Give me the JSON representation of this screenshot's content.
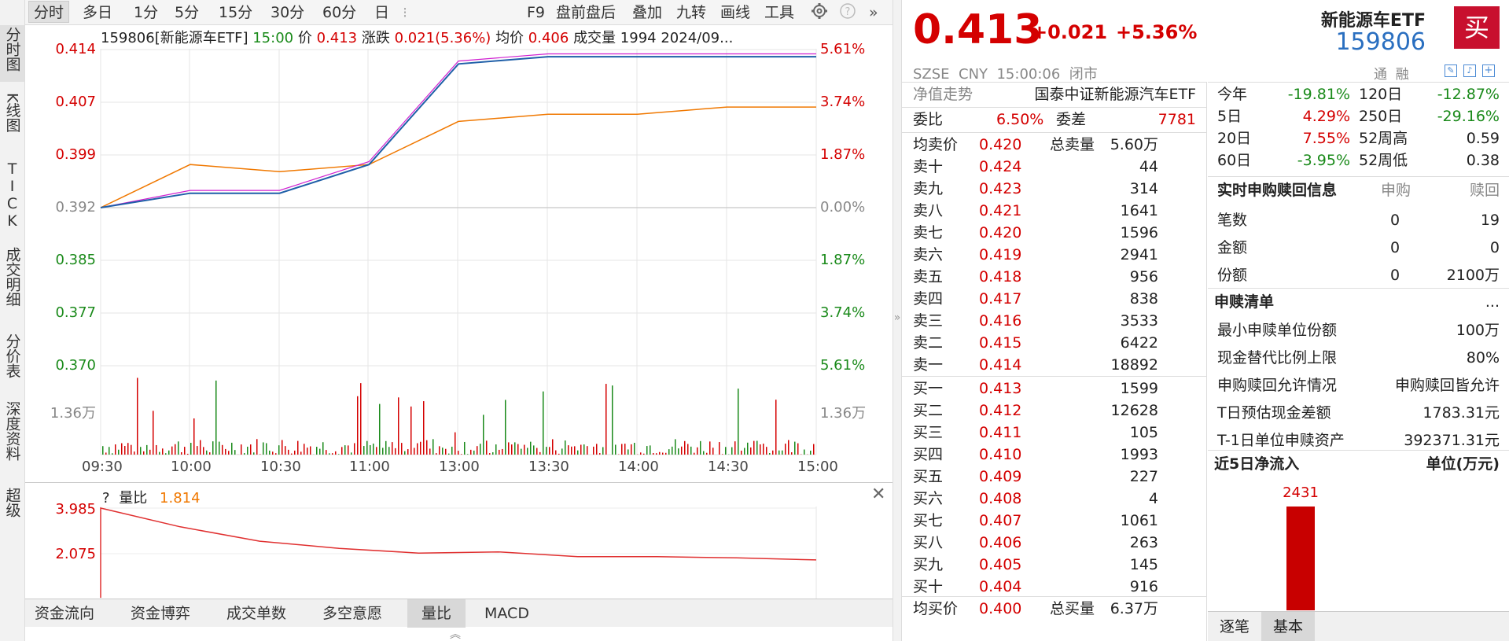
{
  "vtabs": [
    "分时图",
    "K线图",
    "TICK",
    "成交明细",
    "分价表",
    "深度资料",
    "超级"
  ],
  "toolbar": {
    "items": [
      "分时",
      "多日",
      "1分",
      "5分",
      "15分",
      "30分",
      "60分",
      "日"
    ],
    "right_items": [
      "F9",
      "盘前盘后",
      "叠加",
      "九转",
      "画线",
      "工具"
    ]
  },
  "info": {
    "code_name": "159806[新能源车ETF]",
    "time": "15:00",
    "price_label": "价",
    "price": "0.413",
    "change_label": "涨跌",
    "change": "0.021(5.36%)",
    "avg_label": "均价",
    "avg": "0.406",
    "volume_label": "成交量",
    "volume": "1994",
    "date": "2024/09..."
  },
  "y_labels_left": [
    "0.414",
    "0.407",
    "0.399",
    "0.392",
    "0.385",
    "0.377",
    "0.370"
  ],
  "y_labels_right": [
    "5.61%",
    "3.74%",
    "1.87%",
    "0.00%",
    "1.87%",
    "3.74%",
    "5.61%"
  ],
  "vol_label": "1.36万",
  "x_labels": [
    "09:30",
    "10:00",
    "10:30",
    "11:00",
    "13:00",
    "13:30",
    "14:00",
    "14:30",
    "15:00"
  ],
  "chart_data": {
    "type": "line",
    "x": [
      "09:30",
      "10:00",
      "10:30",
      "11:00",
      "11:30/13:00",
      "13:30",
      "14:00",
      "14:30",
      "15:00"
    ],
    "series": [
      {
        "name": "价",
        "values": [
          0.392,
          0.394,
          0.394,
          0.398,
          0.412,
          0.413,
          0.413,
          0.413,
          0.413
        ]
      },
      {
        "name": "均价",
        "values": [
          0.392,
          0.398,
          0.397,
          0.398,
          0.404,
          0.405,
          0.405,
          0.406,
          0.406
        ]
      }
    ],
    "ylim": [
      0.37,
      0.414
    ],
    "ratio": {
      "name": "量比",
      "value": 1.814,
      "ylim": [
        2.075,
        3.985
      ]
    }
  },
  "ratio": {
    "question": "?",
    "label": "量比",
    "value": "1.814",
    "top": "3.985",
    "mid": "2.075"
  },
  "bottom_tabs": [
    "资金流向",
    "资金博弈",
    "成交单数",
    "多空意愿",
    "量比",
    "MACD"
  ],
  "quote": {
    "price": "0.413",
    "change": "+0.021",
    "pct": "+5.36%",
    "name": "新能源车ETF",
    "code": "159806",
    "buy_btn": "买",
    "meta": "SZSE  CNY  15:00:06  闭市",
    "margin": "通  融"
  },
  "nav": {
    "label": "净值走势",
    "fund": "国泰中证新能源汽车ETF"
  },
  "weibi": {
    "label": "委比",
    "value": "6.50%",
    "wc_label": "委差",
    "wc_value": "7781"
  },
  "ask_avg": {
    "label": "均卖价",
    "price": "0.420",
    "total_label": "总卖量",
    "total": "5.60万"
  },
  "asks": [
    {
      "label": "卖十",
      "price": "0.424",
      "vol": "44"
    },
    {
      "label": "卖九",
      "price": "0.423",
      "vol": "314"
    },
    {
      "label": "卖八",
      "price": "0.421",
      "vol": "1641"
    },
    {
      "label": "卖七",
      "price": "0.420",
      "vol": "1596"
    },
    {
      "label": "卖六",
      "price": "0.419",
      "vol": "2941"
    },
    {
      "label": "卖五",
      "price": "0.418",
      "vol": "956"
    },
    {
      "label": "卖四",
      "price": "0.417",
      "vol": "838"
    },
    {
      "label": "卖三",
      "price": "0.416",
      "vol": "3533"
    },
    {
      "label": "卖二",
      "price": "0.415",
      "vol": "6422"
    },
    {
      "label": "卖一",
      "price": "0.414",
      "vol": "18892"
    }
  ],
  "bids": [
    {
      "label": "买一",
      "price": "0.413",
      "vol": "1599"
    },
    {
      "label": "买二",
      "price": "0.412",
      "vol": "12628"
    },
    {
      "label": "买三",
      "price": "0.411",
      "vol": "105"
    },
    {
      "label": "买四",
      "price": "0.410",
      "vol": "1993"
    },
    {
      "label": "买五",
      "price": "0.409",
      "vol": "227"
    },
    {
      "label": "买六",
      "price": "0.408",
      "vol": "4"
    },
    {
      "label": "买七",
      "price": "0.407",
      "vol": "1061"
    },
    {
      "label": "买八",
      "price": "0.406",
      "vol": "263"
    },
    {
      "label": "买九",
      "price": "0.405",
      "vol": "145"
    },
    {
      "label": "买十",
      "price": "0.404",
      "vol": "916"
    }
  ],
  "bid_avg": {
    "label": "均买价",
    "price": "0.400",
    "total_label": "总买量",
    "total": "6.37万"
  },
  "perf": [
    {
      "l1": "今年",
      "v1": "-19.81%",
      "l2": "120日",
      "v2": "-12.87%"
    },
    {
      "l1": "5日",
      "v1": "4.29%",
      "l2": "250日",
      "v2": "-29.16%"
    },
    {
      "l1": "20日",
      "v1": "7.55%",
      "l2": "52周高",
      "v2": "0.59"
    },
    {
      "l1": "60日",
      "v1": "-3.95%",
      "l2": "52周低",
      "v2": "0.38"
    }
  ],
  "sub": {
    "title": "实时申购赎回信息",
    "col1": "申购",
    "col2": "赎回",
    "rows": [
      {
        "label": "笔数",
        "a": "0",
        "b": "19"
      },
      {
        "label": "金额",
        "a": "0",
        "b": "0"
      },
      {
        "label": "份额",
        "a": "0",
        "b": "2100万"
      }
    ]
  },
  "list": {
    "title": "申赎清单",
    "more": "...",
    "rows": [
      {
        "label": "最小申赎单位份额",
        "value": "100万"
      },
      {
        "label": "现金替代比例上限",
        "value": "80%"
      },
      {
        "label": "申购赎回允许情况",
        "value": "申购赎回皆允许"
      },
      {
        "label": "T日预估现金差额",
        "value": "1783.31元"
      },
      {
        "label": "T-1日单位申赎资产",
        "value": "392371.31元"
      }
    ]
  },
  "flow": {
    "title": "近5日净流入",
    "unit": "单位(万元)",
    "bar_value": 2431,
    "bar_label": "2431",
    "ylim": [
      0,
      2431
    ]
  },
  "bottom_right_tabs": [
    "逐笔",
    "基本"
  ],
  "colors": {
    "up": "#d40000",
    "down": "#1a8a1a",
    "price_line": "#1f5fa8",
    "avg_line": "#f07800"
  }
}
